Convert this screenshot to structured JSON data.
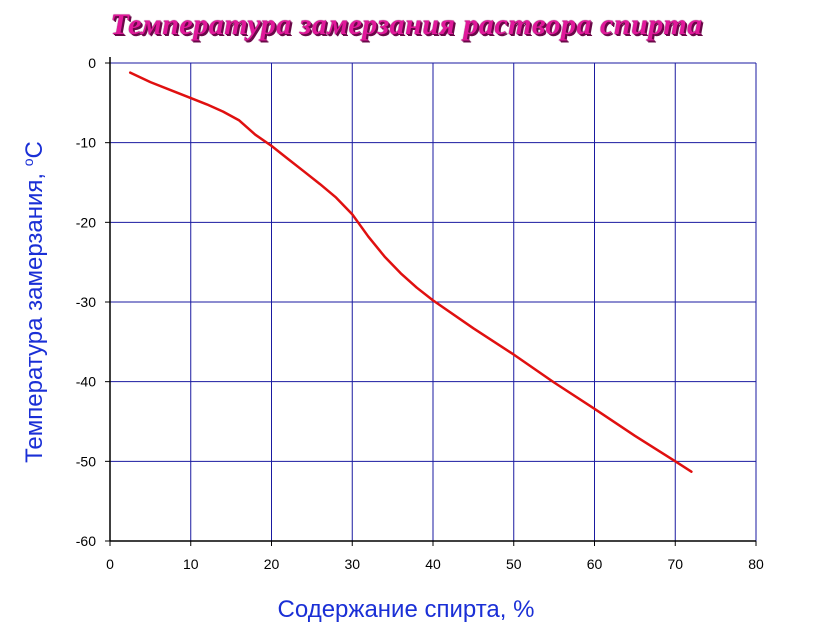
{
  "chart_data": {
    "type": "line",
    "title": "Температура замерзания раствора спирта",
    "xlabel": "Содержание спирта, %",
    "ylabel_main": "Температура замерзания, ",
    "ylabel_sup": "o",
    "ylabel_unit": "C",
    "xlim": [
      0,
      80
    ],
    "ylim": [
      -60,
      0
    ],
    "xticks": [
      0,
      10,
      20,
      30,
      40,
      50,
      60,
      70,
      80
    ],
    "yticks": [
      0,
      -10,
      -20,
      -30,
      -40,
      -50,
      -60
    ],
    "grid": true,
    "colors": {
      "line": "#e01010",
      "grid": "#1a1aa0",
      "axis_label": "#1a2fd6",
      "title": "#e0189a"
    },
    "series": [
      {
        "x": [
          2.5,
          5,
          8,
          10,
          12,
          14,
          16,
          18,
          20,
          22,
          24,
          26,
          28,
          30,
          32,
          34,
          36,
          38,
          40,
          45,
          50,
          55,
          60,
          65,
          70,
          72
        ],
        "y": [
          -1.2,
          -2.4,
          -3.6,
          -4.4,
          -5.2,
          -6.1,
          -7.2,
          -9.0,
          -10.4,
          -12.0,
          -13.6,
          -15.2,
          -16.9,
          -19.0,
          -21.8,
          -24.3,
          -26.4,
          -28.2,
          -29.8,
          -33.3,
          -36.6,
          -40.1,
          -43.4,
          -46.8,
          -50.0,
          -51.3
        ]
      }
    ]
  }
}
